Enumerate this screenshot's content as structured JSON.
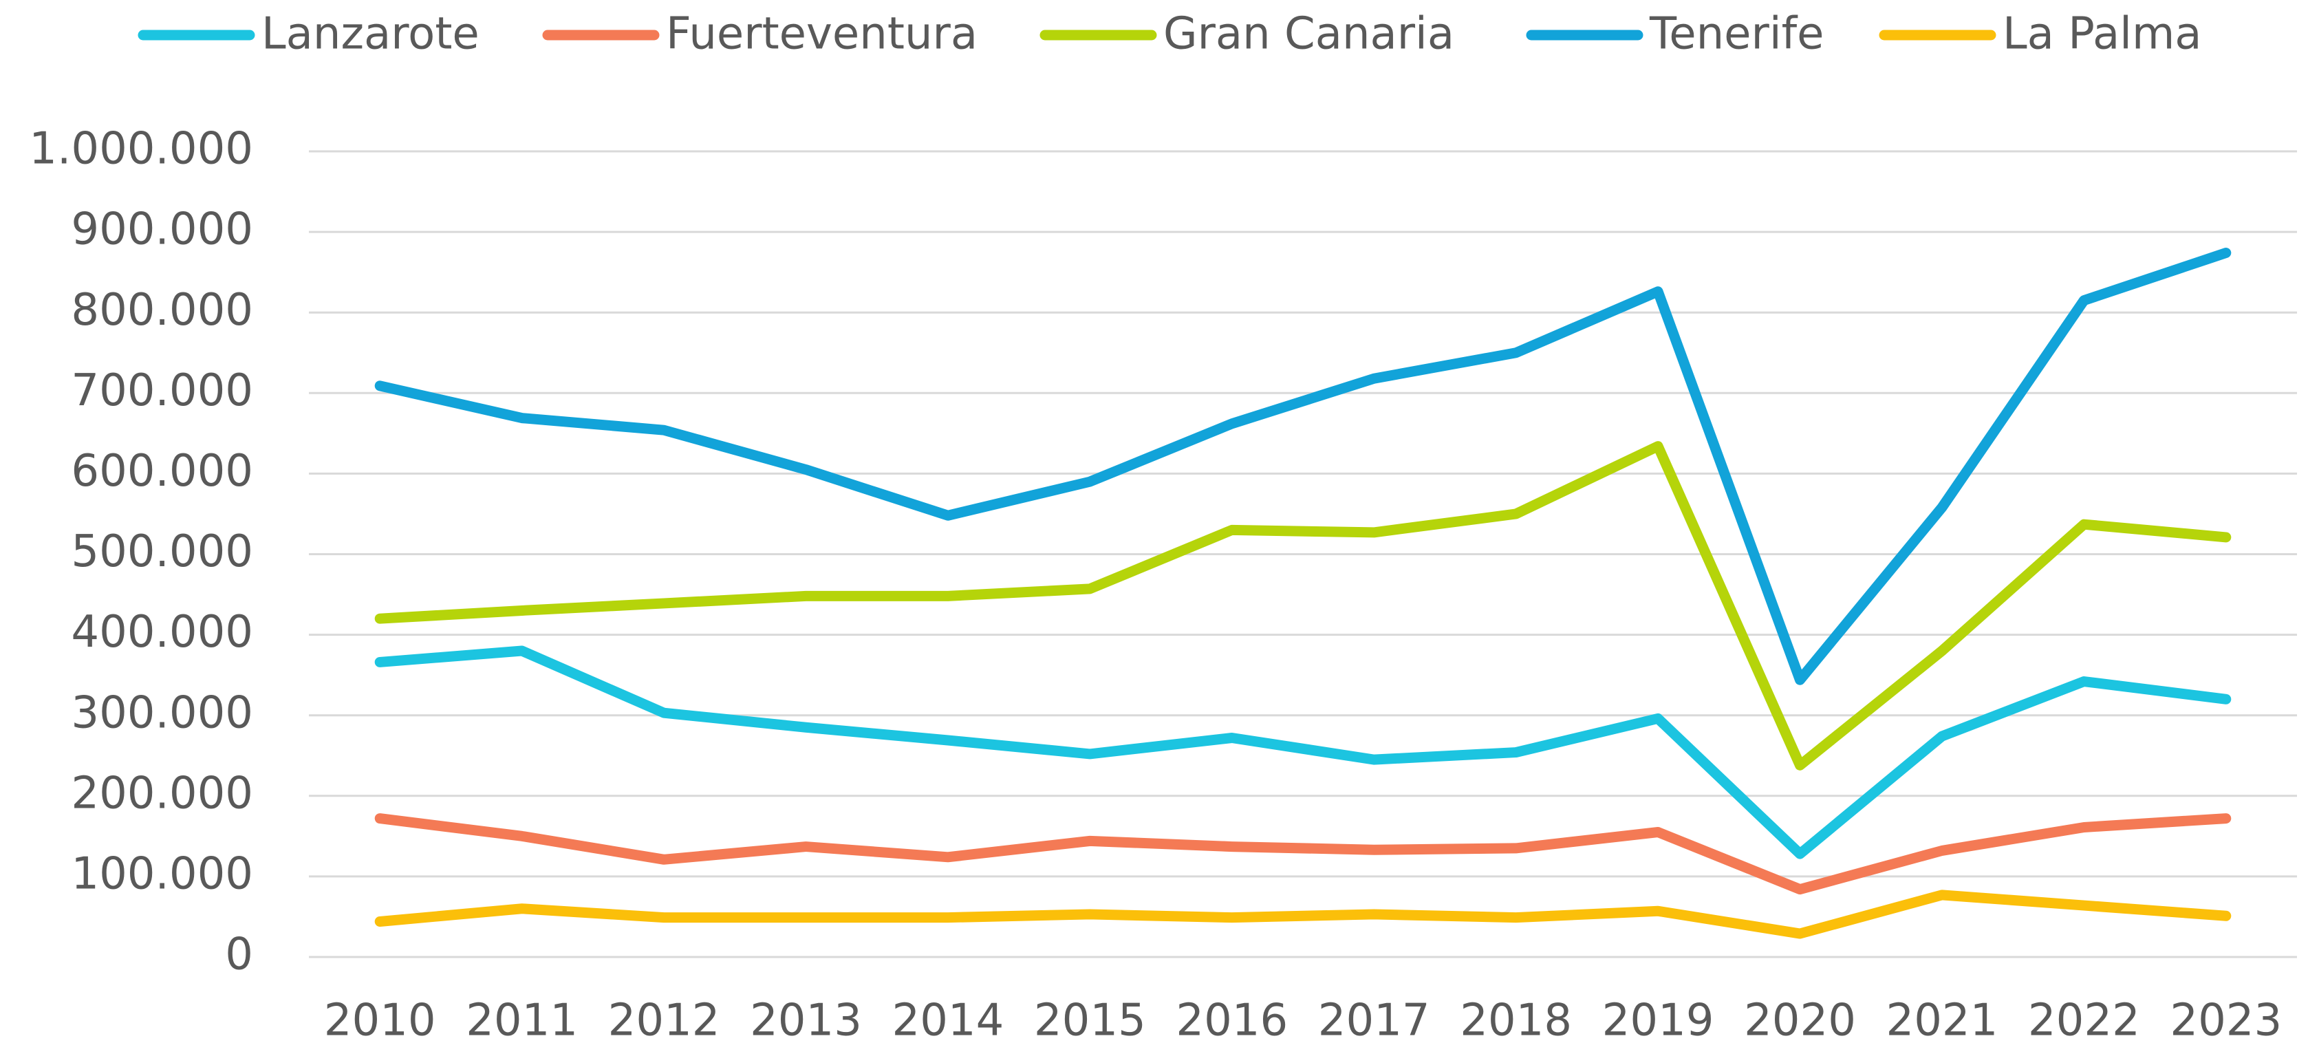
{
  "chart_data": {
    "type": "line",
    "categories": [
      "2010",
      "2011",
      "2012",
      "2013",
      "2014",
      "2015",
      "2016",
      "2017",
      "2018",
      "2019",
      "2020",
      "2021",
      "2022",
      "2023"
    ],
    "series": [
      {
        "name": "Lanzarote",
        "color": "#1cc4e0",
        "values": [
          366000,
          380000,
          303000,
          285000,
          269000,
          252000,
          272000,
          245000,
          254000,
          296000,
          128000,
          274000,
          342000,
          320000
        ]
      },
      {
        "name": "Fuerteventura",
        "color": "#f47a55",
        "values": [
          172000,
          150000,
          121000,
          137000,
          124000,
          144000,
          137000,
          133000,
          135000,
          155000,
          84000,
          132000,
          161000,
          172000
        ]
      },
      {
        "name": "Gran Canaria",
        "color": "#b5d40a",
        "values": [
          420000,
          430000,
          439000,
          448000,
          448000,
          457000,
          530000,
          527000,
          550000,
          634000,
          238000,
          380000,
          537000,
          521000
        ]
      },
      {
        "name": "Tenerife",
        "color": "#12a3d9",
        "values": [
          709000,
          669000,
          654000,
          605000,
          548000,
          590000,
          662000,
          718000,
          750000,
          826000,
          344000,
          558000,
          815000,
          874000
        ]
      },
      {
        "name": "La Palma",
        "color": "#fbbf0a",
        "values": [
          44000,
          60000,
          49000,
          49000,
          49000,
          53000,
          49000,
          53000,
          49000,
          57000,
          29000,
          77000,
          64000,
          51000
        ]
      }
    ],
    "ylim": [
      0,
      1000000
    ],
    "yticks": [
      0,
      {
        "value": 100000,
        "label": "100.000"
      },
      {
        "value": 200000,
        "label": "200.000"
      },
      {
        "value": 300000,
        "label": "300.000"
      },
      {
        "value": 400000,
        "label": "400.000"
      },
      {
        "value": 500000,
        "label": "500.000"
      },
      {
        "value": 600000,
        "label": "600.000"
      },
      {
        "value": 700000,
        "label": "700.000"
      },
      {
        "value": 800000,
        "label": "800.000"
      },
      {
        "value": 900000,
        "label": "900.000"
      },
      {
        "value": 1000000,
        "label": "1.000.000"
      }
    ],
    "grid": true,
    "legend": "top"
  }
}
